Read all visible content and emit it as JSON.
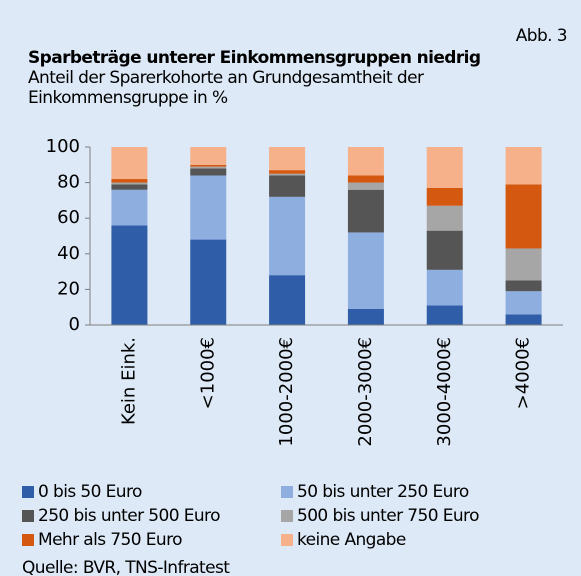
{
  "chart_data": {
    "type": "bar",
    "stacked": true,
    "annotation": "Abb. 3",
    "title": "Sparbeträge unterer Einkommensgruppen niedrig",
    "subtitle": [
      "Anteil der Sparerkohorte an Grundgesamtheit der",
      "Einkommensgruppe in %"
    ],
    "source": "Quelle: BVR, TNS-Infratest",
    "categories": [
      "Kein Eink.",
      "<1000€",
      "1000-2000€",
      "2000-3000€",
      "3000-4000€",
      ">4000€"
    ],
    "series": [
      {
        "name": "0 bis 50 Euro",
        "color": "#2f5da8",
        "values": [
          56,
          48,
          28,
          9,
          11,
          6
        ]
      },
      {
        "name": "50 bis unter 250 Euro",
        "color": "#8faee0",
        "values": [
          20,
          36,
          44,
          43,
          20,
          13
        ]
      },
      {
        "name": "250 bis unter 500 Euro",
        "color": "#555555",
        "values": [
          3,
          4,
          12,
          24,
          22,
          6
        ]
      },
      {
        "name": "500 bis unter 750 Euro",
        "color": "#a6a6a6",
        "values": [
          1,
          1,
          1,
          4,
          14,
          18
        ]
      },
      {
        "name": "Mehr als 750 Euro",
        "color": "#d4580f",
        "values": [
          2,
          1,
          2,
          4,
          10,
          36
        ]
      },
      {
        "name": "keine Angabe",
        "color": "#f6b08a",
        "values": [
          18,
          10,
          13,
          16,
          23,
          21
        ]
      }
    ],
    "ylim": [
      0,
      100
    ],
    "yticks": [
      0,
      20,
      40,
      60,
      80,
      100
    ],
    "legend": "bottom"
  }
}
